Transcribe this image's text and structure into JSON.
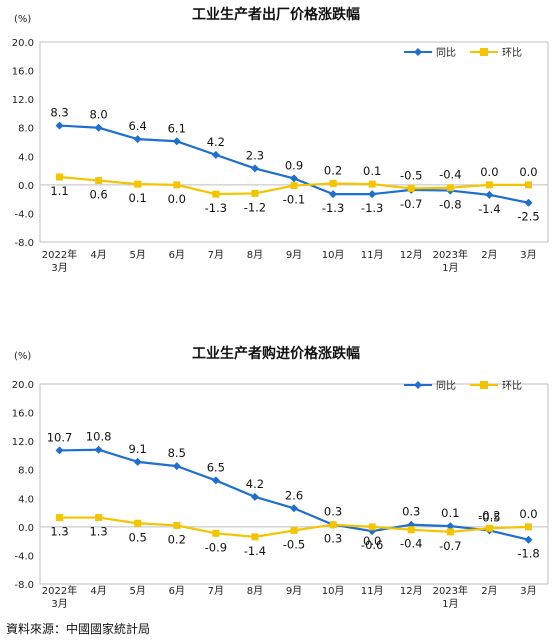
{
  "source_note": "資料來源：中國國家統計局",
  "chart_data": [
    {
      "type": "line",
      "title": "工业生产者出厂价格涨跌幅",
      "unit_label": "(%)",
      "categories": [
        "2022年\n3月",
        "4月",
        "5月",
        "6月",
        "7月",
        "8月",
        "9月",
        "10月",
        "11月",
        "12月",
        "2023年\n1月",
        "2月",
        "3月"
      ],
      "ylim": [
        -8.0,
        20.0
      ],
      "yticks": [
        "-8.0",
        "-4.0",
        "0.0",
        "4.0",
        "8.0",
        "12.0",
        "16.0",
        "20.0"
      ],
      "legend_position": "top-right",
      "series": [
        {
          "name": "同比",
          "color": "#1f6fd1",
          "values": [
            8.3,
            8.0,
            6.4,
            6.1,
            4.2,
            2.3,
            0.9,
            -1.3,
            -1.3,
            -0.7,
            -0.8,
            -1.4,
            -2.5
          ],
          "labels": [
            "8.3",
            "8.0",
            "6.4",
            "6.1",
            "4.2",
            "2.3",
            "0.9",
            "-1.3",
            "-1.3",
            "-0.7",
            "-0.8",
            "-1.4",
            "-2.5"
          ]
        },
        {
          "name": "环比",
          "color": "#f5c400",
          "values": [
            1.1,
            0.6,
            0.1,
            0.0,
            -1.3,
            -1.2,
            -0.1,
            0.2,
            0.1,
            -0.5,
            -0.4,
            0.0,
            0.0
          ],
          "labels": [
            "1.1",
            "0.6",
            "0.1",
            "0.0",
            "-1.3",
            "-1.2",
            "-0.1",
            "0.2",
            "0.1",
            "-0.5",
            "-0.4",
            "0.0",
            "0.0"
          ]
        }
      ]
    },
    {
      "type": "line",
      "title": "工业生产者购进价格涨跌幅",
      "unit_label": "(%)",
      "categories": [
        "2022年\n3月",
        "4月",
        "5月",
        "6月",
        "7月",
        "8月",
        "9月",
        "10月",
        "11月",
        "12月",
        "2023年\n1月",
        "2月",
        "3月"
      ],
      "ylim": [
        -8.0,
        20.0
      ],
      "yticks": [
        "-8.0",
        "-4.0",
        "0.0",
        "4.0",
        "8.0",
        "12.0",
        "16.0",
        "20.0"
      ],
      "legend_position": "top-right",
      "series": [
        {
          "name": "同比",
          "color": "#1f6fd1",
          "values": [
            10.7,
            10.8,
            9.1,
            8.5,
            6.5,
            4.2,
            2.6,
            0.3,
            -0.6,
            0.3,
            0.1,
            -0.5,
            -1.8
          ],
          "labels": [
            "10.7",
            "10.8",
            "9.1",
            "8.5",
            "6.5",
            "4.2",
            "2.6",
            "0.3",
            "-0.6",
            "0.3",
            "0.1",
            "-0.5",
            "-1.8"
          ]
        },
        {
          "name": "环比",
          "color": "#f5c400",
          "values": [
            1.3,
            1.3,
            0.5,
            0.2,
            -0.9,
            -1.4,
            -0.5,
            0.3,
            0.0,
            -0.4,
            -0.7,
            -0.2,
            0.0
          ],
          "labels": [
            "1.3",
            "1.3",
            "0.5",
            "0.2",
            "-0.9",
            "-1.4",
            "-0.5",
            "0.3",
            "0.0",
            "-0.4",
            "-0.7",
            "-0.2",
            "0.0"
          ]
        }
      ]
    }
  ]
}
